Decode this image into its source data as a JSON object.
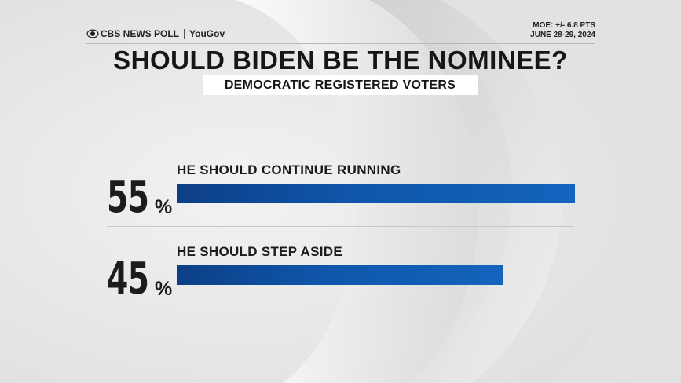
{
  "header": {
    "brand": "CBS NEWS POLL",
    "partner": "YouGov",
    "moe": "MOE: +/- 6.8 PTS",
    "dates": "JUNE 28-29, 2024"
  },
  "title": "SHOULD BIDEN BE THE NOMINEE?",
  "subtitle": "DEMOCRATIC REGISTERED VOTERS",
  "colors": {
    "bar": "#1464bd",
    "bar_dark": "#0d3f87",
    "background": "#e9e9e9"
  },
  "rows": [
    {
      "value": "55",
      "symbol": "%",
      "label": "HE SHOULD CONTINUE RUNNING"
    },
    {
      "value": "45",
      "symbol": "%",
      "label": "HE SHOULD STEP ASIDE"
    }
  ],
  "chart_data": {
    "type": "bar",
    "orientation": "horizontal",
    "title": "SHOULD BIDEN BE THE NOMINEE?",
    "subtitle": "DEMOCRATIC REGISTERED VOTERS",
    "categories": [
      "HE SHOULD CONTINUE RUNNING",
      "HE SHOULD STEP ASIDE"
    ],
    "values": [
      55,
      45
    ],
    "unit": "%",
    "ylim": [
      0,
      55
    ],
    "grid": false,
    "legend": "none"
  }
}
